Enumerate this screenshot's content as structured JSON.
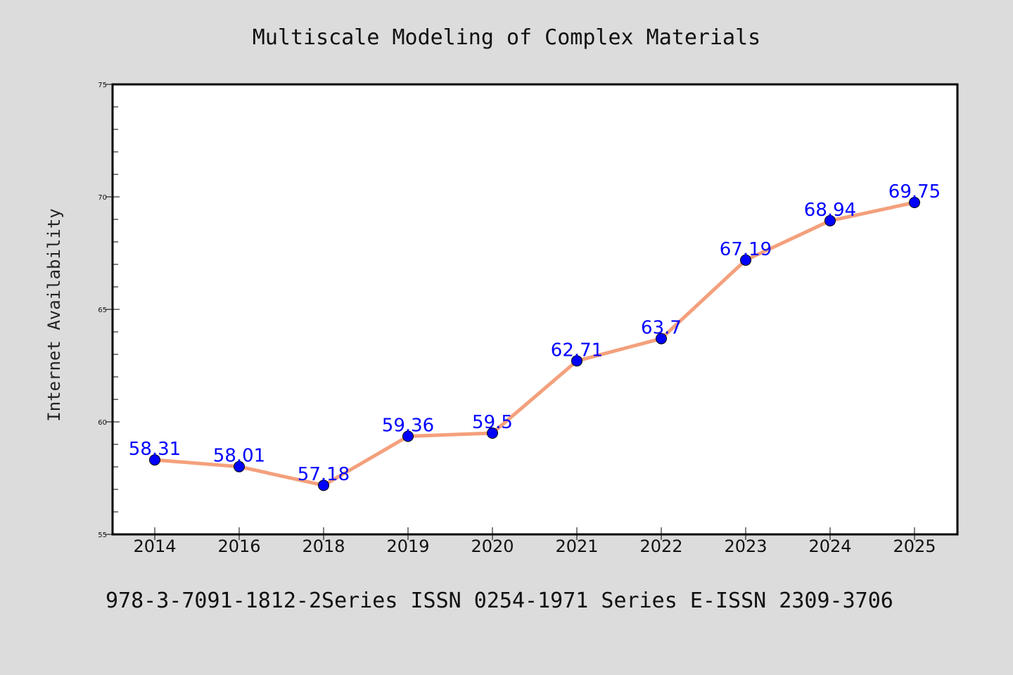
{
  "chart_data": {
    "type": "line",
    "title": "Multiscale Modeling of Complex Materials",
    "xlabel": "",
    "ylabel": "Internet Availability",
    "categories": [
      "2014",
      "2016",
      "2018",
      "2019",
      "2020",
      "2021",
      "2022",
      "2023",
      "2024",
      "2025"
    ],
    "values": [
      58.31,
      58.01,
      57.18,
      59.36,
      59.5,
      62.71,
      63.7,
      67.19,
      68.94,
      69.75
    ],
    "data_labels": [
      "58.31",
      "58.01",
      "57.18",
      "59.36",
      "59.5",
      "62.71",
      "63.7",
      "67.19",
      "68.94",
      "69.75"
    ],
    "ylim": [
      55,
      75
    ],
    "y_ticks": [
      55,
      60,
      65,
      70,
      75
    ],
    "y_tick_labels": [
      "55",
      "60",
      "65",
      "70",
      "75"
    ],
    "grid": false,
    "legend": "none",
    "colors": {
      "line": "#f4a07c",
      "marker": "#0000ff",
      "data_label": "#0000ff"
    }
  },
  "footer": "978-3-7091-1812-2Series ISSN 0254-1971 Series E-ISSN 2309-3706"
}
